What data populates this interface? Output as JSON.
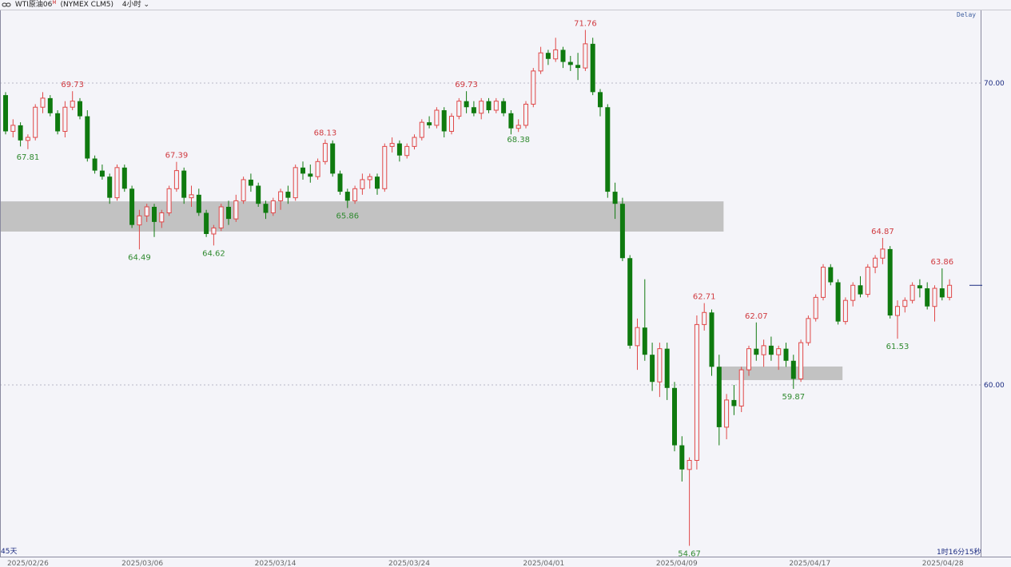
{
  "header": {
    "link_icon": "chain-link-icon",
    "symbol": "WTI原油06",
    "superscript": "M",
    "contract": "(NYMEX CLM5)",
    "timeframe": "4小时",
    "dropdown_icon": "chevron-down-icon"
  },
  "status": {
    "delay": "Delay",
    "range_label": "45天",
    "countdown": "1时16分15秒"
  },
  "colors": {
    "up": "#e04848",
    "down": "#0f7a0f",
    "high_label": "#d03a40",
    "low_label": "#2f8a2f",
    "zone": "#c2c2c2",
    "background": "#f4f4f9",
    "current_price": "#1a2a80"
  },
  "chart_data": {
    "type": "candlestick",
    "title": "",
    "ylim": [
      53.85,
      72.05
    ],
    "y_ticks": [
      {
        "value": 70,
        "label": "70.00"
      },
      {
        "value": 60,
        "label": "60.00"
      }
    ],
    "grid": "horizontal dotted at ticks",
    "x_ticks": [
      {
        "index": 3,
        "label": "2025/02/26"
      },
      {
        "index": 18.4,
        "label": "2025/03/06"
      },
      {
        "index": 36.3,
        "label": "2025/03/14"
      },
      {
        "index": 54.3,
        "label": "2025/03/24"
      },
      {
        "index": 72.4,
        "label": "2025/04/01"
      },
      {
        "index": 90.3,
        "label": "2025/04/09"
      },
      {
        "index": 108.2,
        "label": "2025/04/17"
      },
      {
        "index": 126.1,
        "label": "2025/04/28"
      }
    ],
    "current_price": 63.3,
    "zones": [
      {
        "from_index": -1,
        "to_index": 96.6,
        "low": 65.08,
        "high": 66.08
      },
      {
        "from_index": 95.8,
        "to_index": 112.6,
        "low": 60.16,
        "high": 60.61
      }
    ],
    "annotations": [
      {
        "index": 3,
        "kind": "low",
        "label": "67.81",
        "price": 67.81
      },
      {
        "index": 9,
        "kind": "high",
        "label": "69.73",
        "price": 69.73
      },
      {
        "index": 18,
        "kind": "low",
        "label": "64.49",
        "price": 64.49
      },
      {
        "index": 23,
        "kind": "high",
        "label": "67.39",
        "price": 67.39
      },
      {
        "index": 28,
        "kind": "low",
        "label": "64.62",
        "price": 64.62
      },
      {
        "index": 43,
        "kind": "high",
        "label": "68.13",
        "price": 68.13
      },
      {
        "index": 46,
        "kind": "low",
        "label": "65.86",
        "price": 65.86
      },
      {
        "index": 62,
        "kind": "high",
        "label": "69.73",
        "price": 69.73
      },
      {
        "index": 69,
        "kind": "low",
        "label": "68.38",
        "price": 68.38
      },
      {
        "index": 78,
        "kind": "high",
        "label": "71.76",
        "price": 71.76
      },
      {
        "index": 92,
        "kind": "low",
        "label": "54.67",
        "price": 54.67
      },
      {
        "index": 94,
        "kind": "high",
        "label": "62.71",
        "price": 62.71
      },
      {
        "index": 101,
        "kind": "high",
        "label": "62.07",
        "price": 62.07
      },
      {
        "index": 106,
        "kind": "low",
        "label": "59.87",
        "price": 59.87
      },
      {
        "index": 118,
        "kind": "high",
        "label": "64.87",
        "price": 64.87
      },
      {
        "index": 120,
        "kind": "low",
        "label": "61.53",
        "price": 61.53
      },
      {
        "index": 126,
        "kind": "high",
        "label": "63.86",
        "price": 63.86
      }
    ],
    "ohlc": [
      [
        69.6,
        69.7,
        68.3,
        68.4
      ],
      [
        68.4,
        68.8,
        68.2,
        68.6
      ],
      [
        68.6,
        68.7,
        67.9,
        68.1
      ],
      [
        68.1,
        68.3,
        67.81,
        68.2
      ],
      [
        68.2,
        69.3,
        68.1,
        69.2
      ],
      [
        69.2,
        69.7,
        69.0,
        69.5
      ],
      [
        69.5,
        69.6,
        68.9,
        69.0
      ],
      [
        69.0,
        69.1,
        68.3,
        68.4
      ],
      [
        68.4,
        69.4,
        68.2,
        69.2
      ],
      [
        69.2,
        69.73,
        69.1,
        69.4
      ],
      [
        69.4,
        69.5,
        68.8,
        68.9
      ],
      [
        68.9,
        69.1,
        67.4,
        67.5
      ],
      [
        67.5,
        67.6,
        67.0,
        67.1
      ],
      [
        67.1,
        67.3,
        66.8,
        66.9
      ],
      [
        66.9,
        67.0,
        66.0,
        66.2
      ],
      [
        66.2,
        67.3,
        66.1,
        67.2
      ],
      [
        67.2,
        67.3,
        66.4,
        66.5
      ],
      [
        66.5,
        66.6,
        65.2,
        65.3
      ],
      [
        65.3,
        65.8,
        64.49,
        65.6
      ],
      [
        65.6,
        66.0,
        65.4,
        65.9
      ],
      [
        65.9,
        66.0,
        64.9,
        65.4
      ],
      [
        65.4,
        65.8,
        65.2,
        65.7
      ],
      [
        65.7,
        66.6,
        65.6,
        66.5
      ],
      [
        66.5,
        67.39,
        66.4,
        67.1
      ],
      [
        67.1,
        67.2,
        66.0,
        66.2
      ],
      [
        66.2,
        66.6,
        65.9,
        66.3
      ],
      [
        66.3,
        66.5,
        65.6,
        65.7
      ],
      [
        65.7,
        65.8,
        64.9,
        65.0
      ],
      [
        65.0,
        65.3,
        64.62,
        65.2
      ],
      [
        65.2,
        66.0,
        65.1,
        65.9
      ],
      [
        65.9,
        66.1,
        65.3,
        65.5
      ],
      [
        65.5,
        66.3,
        65.4,
        66.1
      ],
      [
        66.1,
        66.9,
        66.0,
        66.8
      ],
      [
        66.8,
        67.0,
        66.4,
        66.6
      ],
      [
        66.6,
        66.7,
        65.9,
        66.0
      ],
      [
        66.0,
        66.1,
        65.5,
        65.7
      ],
      [
        65.7,
        66.2,
        65.6,
        66.1
      ],
      [
        66.1,
        66.5,
        65.8,
        66.4
      ],
      [
        66.4,
        66.6,
        66.0,
        66.2
      ],
      [
        66.2,
        67.3,
        66.1,
        67.2
      ],
      [
        67.2,
        67.4,
        66.8,
        67.0
      ],
      [
        67.0,
        67.3,
        66.7,
        66.9
      ],
      [
        66.9,
        67.5,
        66.8,
        67.4
      ],
      [
        67.4,
        68.13,
        67.3,
        68.0
      ],
      [
        68.0,
        68.1,
        66.9,
        67.0
      ],
      [
        67.0,
        67.1,
        66.3,
        66.4
      ],
      [
        66.4,
        66.5,
        65.86,
        66.1
      ],
      [
        66.1,
        66.6,
        66.0,
        66.5
      ],
      [
        66.5,
        67.0,
        66.3,
        66.8
      ],
      [
        66.8,
        67.0,
        66.5,
        66.9
      ],
      [
        66.9,
        67.0,
        66.3,
        66.5
      ],
      [
        66.5,
        68.0,
        66.4,
        67.9
      ],
      [
        67.9,
        68.2,
        67.7,
        68.0
      ],
      [
        68.0,
        68.1,
        67.4,
        67.6
      ],
      [
        67.6,
        68.0,
        67.5,
        67.9
      ],
      [
        67.9,
        68.3,
        67.8,
        68.2
      ],
      [
        68.2,
        68.8,
        68.1,
        68.7
      ],
      [
        68.7,
        68.9,
        68.5,
        68.6
      ],
      [
        68.6,
        69.2,
        68.5,
        69.1
      ],
      [
        69.1,
        69.2,
        68.2,
        68.4
      ],
      [
        68.4,
        69.0,
        68.3,
        68.9
      ],
      [
        68.9,
        69.5,
        68.8,
        69.4
      ],
      [
        69.4,
        69.73,
        69.0,
        69.2
      ],
      [
        69.2,
        69.4,
        68.9,
        69.0
      ],
      [
        69.0,
        69.5,
        68.8,
        69.4
      ],
      [
        69.4,
        69.5,
        69.0,
        69.1
      ],
      [
        69.1,
        69.5,
        69.0,
        69.4
      ],
      [
        69.4,
        69.5,
        68.9,
        69.0
      ],
      [
        69.0,
        69.1,
        68.3,
        68.5
      ],
      [
        68.5,
        68.8,
        68.38,
        68.6
      ],
      [
        68.6,
        69.4,
        68.5,
        69.3
      ],
      [
        69.3,
        70.5,
        69.2,
        70.4
      ],
      [
        70.4,
        71.2,
        70.3,
        71.0
      ],
      [
        71.0,
        71.1,
        70.6,
        70.8
      ],
      [
        70.8,
        71.5,
        70.7,
        71.1
      ],
      [
        71.1,
        71.2,
        70.5,
        70.7
      ],
      [
        70.7,
        70.9,
        70.4,
        70.6
      ],
      [
        70.6,
        71.0,
        70.1,
        70.5
      ],
      [
        70.5,
        71.76,
        70.4,
        71.3
      ],
      [
        71.3,
        71.5,
        69.6,
        69.7
      ],
      [
        69.7,
        69.8,
        68.9,
        69.2
      ],
      [
        69.2,
        69.3,
        66.2,
        66.4
      ],
      [
        66.4,
        66.7,
        65.5,
        66.0
      ],
      [
        66.0,
        66.2,
        64.1,
        64.2
      ],
      [
        64.2,
        64.3,
        61.2,
        61.3
      ],
      [
        61.3,
        62.2,
        60.5,
        61.9
      ],
      [
        61.9,
        63.5,
        60.8,
        61.0
      ],
      [
        61.0,
        61.4,
        59.8,
        60.1
      ],
      [
        60.1,
        61.4,
        59.6,
        61.2
      ],
      [
        61.2,
        61.4,
        59.5,
        59.9
      ],
      [
        59.9,
        60.1,
        57.8,
        58.0
      ],
      [
        58.0,
        58.3,
        56.8,
        57.2
      ],
      [
        57.2,
        57.6,
        54.67,
        57.5
      ],
      [
        57.5,
        62.3,
        57.2,
        62.0
      ],
      [
        62.0,
        62.71,
        61.8,
        62.4
      ],
      [
        62.4,
        62.5,
        60.3,
        60.6
      ],
      [
        60.6,
        61.0,
        58.0,
        58.6
      ],
      [
        58.6,
        59.7,
        58.2,
        59.5
      ],
      [
        59.5,
        60.0,
        59.0,
        59.3
      ],
      [
        59.3,
        60.6,
        59.1,
        60.5
      ],
      [
        60.5,
        61.3,
        60.3,
        61.2
      ],
      [
        61.2,
        62.07,
        60.8,
        61.0
      ],
      [
        61.0,
        61.5,
        60.6,
        61.3
      ],
      [
        61.3,
        61.6,
        60.8,
        61.0
      ],
      [
        61.0,
        61.3,
        60.5,
        61.2
      ],
      [
        61.2,
        61.4,
        60.6,
        60.8
      ],
      [
        60.8,
        61.0,
        59.87,
        60.2
      ],
      [
        60.2,
        61.5,
        60.1,
        61.4
      ],
      [
        61.4,
        62.3,
        61.3,
        62.2
      ],
      [
        62.2,
        63.0,
        62.1,
        62.9
      ],
      [
        62.9,
        64.0,
        62.8,
        63.9
      ],
      [
        63.9,
        64.0,
        63.3,
        63.4
      ],
      [
        63.4,
        63.5,
        62.0,
        62.1
      ],
      [
        62.1,
        62.9,
        62.0,
        62.8
      ],
      [
        62.8,
        63.4,
        62.6,
        63.3
      ],
      [
        63.3,
        63.6,
        62.9,
        63.0
      ],
      [
        63.0,
        64.0,
        62.9,
        63.9
      ],
      [
        63.9,
        64.3,
        63.7,
        64.2
      ],
      [
        64.2,
        64.87,
        64.0,
        64.5
      ],
      [
        64.5,
        64.6,
        62.2,
        62.3
      ],
      [
        62.3,
        62.8,
        61.53,
        62.6
      ],
      [
        62.6,
        62.9,
        62.4,
        62.8
      ],
      [
        62.8,
        63.4,
        62.7,
        63.3
      ],
      [
        63.3,
        63.5,
        62.9,
        63.2
      ],
      [
        63.2,
        63.4,
        62.5,
        62.6
      ],
      [
        62.6,
        63.3,
        62.1,
        63.2
      ],
      [
        63.2,
        63.86,
        62.8,
        62.9
      ],
      [
        62.9,
        63.5,
        62.8,
        63.3
      ]
    ]
  }
}
